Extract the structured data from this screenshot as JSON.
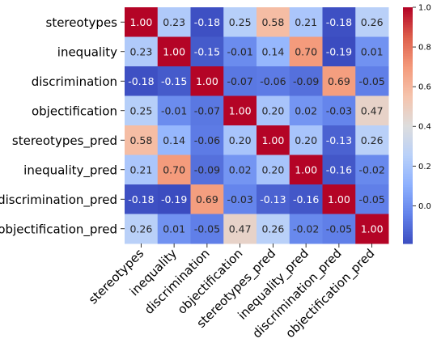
{
  "chart_data": {
    "type": "heatmap",
    "labels": [
      "stereotypes",
      "inequality",
      "discrimination",
      "objectification",
      "stereotypes_pred",
      "inequality_pred",
      "discrimination_pred",
      "objectification_pred"
    ],
    "values": [
      [
        1.0,
        0.23,
        -0.18,
        0.25,
        0.58,
        0.21,
        -0.18,
        0.26
      ],
      [
        0.23,
        1.0,
        -0.15,
        -0.01,
        0.14,
        0.7,
        -0.19,
        0.01
      ],
      [
        -0.18,
        -0.15,
        1.0,
        -0.07,
        -0.06,
        -0.09,
        0.69,
        -0.05
      ],
      [
        0.25,
        -0.01,
        -0.07,
        1.0,
        0.2,
        0.02,
        -0.03,
        0.47
      ],
      [
        0.58,
        0.14,
        -0.06,
        0.2,
        1.0,
        0.2,
        -0.13,
        0.26
      ],
      [
        0.21,
        0.7,
        -0.09,
        0.02,
        0.2,
        1.0,
        -0.16,
        -0.02
      ],
      [
        -0.18,
        -0.19,
        0.69,
        -0.03,
        -0.13,
        -0.16,
        1.0,
        -0.05
      ],
      [
        0.26,
        0.01,
        -0.05,
        0.47,
        0.26,
        -0.02,
        -0.05,
        1.0
      ]
    ],
    "annotation_format": "2 decimals",
    "colormap": "coolwarm",
    "vmin": -0.19,
    "vmax": 1.0,
    "colorbar_ticks": [
      "1.0",
      "0.8",
      "0.6",
      "0.4",
      "0.2",
      "0.0"
    ],
    "title": "",
    "xlabel": "",
    "ylabel": ""
  }
}
